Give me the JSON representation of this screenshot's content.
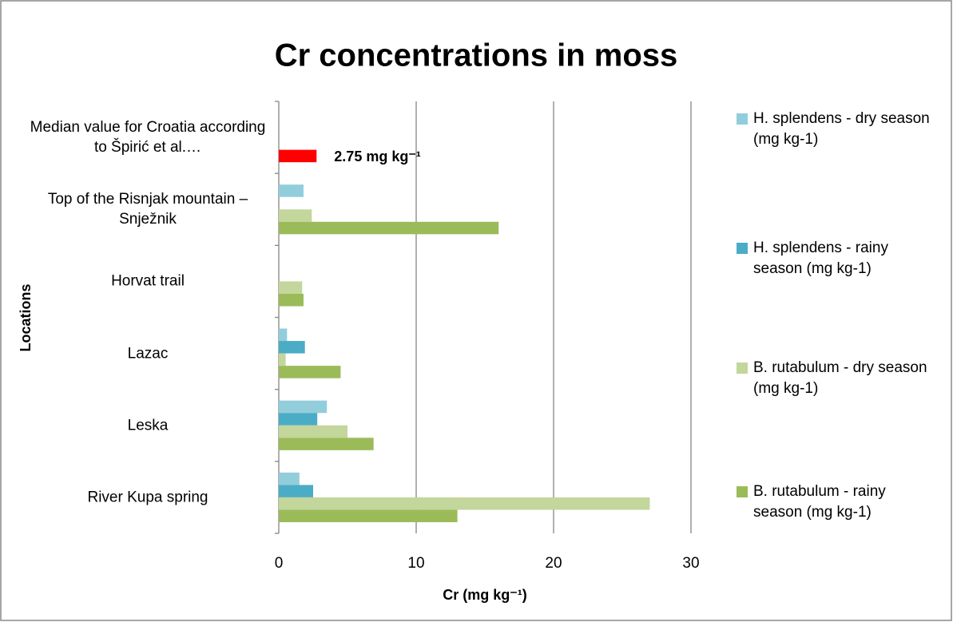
{
  "chart_data": {
    "type": "bar",
    "orientation": "horizontal",
    "title": "Cr concentrations in moss",
    "x_label": "Cr (mg kg⁻¹)",
    "y_label": "Locations",
    "categories": [
      "River Kupa spring",
      "Leska",
      "Lazac",
      "Horvat trail",
      "Top of the Risnjak mountain – Snježnik",
      "Median value for Croatia according to Špirić et al.…"
    ],
    "series": [
      {
        "name": "H. splendens - dry season (mg kg-1)",
        "color": "#92cddc",
        "values": [
          1.5,
          3.5,
          0.6,
          null,
          1.8,
          null
        ]
      },
      {
        "name": "H. splendens - rainy season (mg kg-1)",
        "color": "#4bacc6",
        "values": [
          2.5,
          2.8,
          1.9,
          null,
          null,
          null
        ]
      },
      {
        "name": "B. rutabulum - dry season (mg kg-1)",
        "color": "#c3d69b",
        "values": [
          27,
          5,
          0.5,
          1.7,
          2.4,
          null
        ]
      },
      {
        "name": "B. rutabulum - rainy season (mg kg-1)",
        "color": "#9bbb59",
        "values": [
          13,
          6.9,
          4.5,
          1.8,
          16,
          null
        ]
      }
    ],
    "reference": {
      "category": 5,
      "value": 2.75,
      "value_label": "2.75 mg kg⁻¹",
      "color": "#ff0000"
    },
    "xlim": [
      0,
      30
    ],
    "xticks": [
      0,
      10,
      20,
      30
    ],
    "grid": true,
    "legend": "right"
  }
}
